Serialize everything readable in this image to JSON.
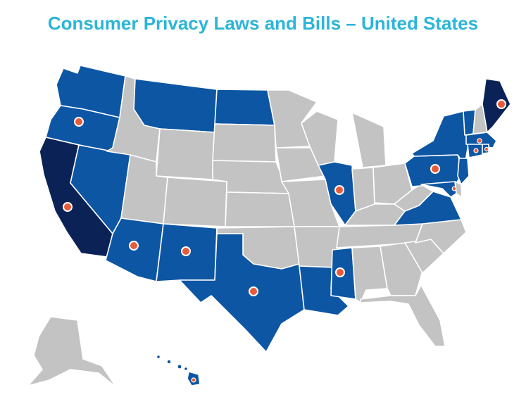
{
  "title": "Consumer Privacy Laws and Bills – United States",
  "colors": {
    "title": "#2bb5d8",
    "enacted": "#0b2257",
    "bill": "#0d56a3",
    "none": "#c3c3c3",
    "marker": "#e85b3a"
  },
  "states": [
    {
      "code": "WA",
      "status": "bill",
      "marker": false
    },
    {
      "code": "OR",
      "status": "bill",
      "marker": true
    },
    {
      "code": "CA",
      "status": "enacted",
      "marker": true
    },
    {
      "code": "NV",
      "status": "bill",
      "marker": false
    },
    {
      "code": "ID",
      "status": "none",
      "marker": false
    },
    {
      "code": "MT",
      "status": "bill",
      "marker": false
    },
    {
      "code": "WY",
      "status": "none",
      "marker": false
    },
    {
      "code": "UT",
      "status": "none",
      "marker": false
    },
    {
      "code": "AZ",
      "status": "bill",
      "marker": true
    },
    {
      "code": "CO",
      "status": "none",
      "marker": false
    },
    {
      "code": "NM",
      "status": "bill",
      "marker": true
    },
    {
      "code": "ND",
      "status": "bill",
      "marker": false
    },
    {
      "code": "SD",
      "status": "none",
      "marker": false
    },
    {
      "code": "NE",
      "status": "none",
      "marker": false
    },
    {
      "code": "KS",
      "status": "none",
      "marker": false
    },
    {
      "code": "OK",
      "status": "none",
      "marker": false
    },
    {
      "code": "TX",
      "status": "bill",
      "marker": true
    },
    {
      "code": "MN",
      "status": "none",
      "marker": false
    },
    {
      "code": "IA",
      "status": "none",
      "marker": false
    },
    {
      "code": "MO",
      "status": "none",
      "marker": false
    },
    {
      "code": "AR",
      "status": "none",
      "marker": false
    },
    {
      "code": "LA",
      "status": "bill",
      "marker": false
    },
    {
      "code": "WI",
      "status": "none",
      "marker": false
    },
    {
      "code": "IL",
      "status": "bill",
      "marker": true
    },
    {
      "code": "MS",
      "status": "bill",
      "marker": true
    },
    {
      "code": "MI",
      "status": "none",
      "marker": false
    },
    {
      "code": "IN",
      "status": "none",
      "marker": false
    },
    {
      "code": "OH",
      "status": "none",
      "marker": false
    },
    {
      "code": "KY",
      "status": "none",
      "marker": false
    },
    {
      "code": "TN",
      "status": "none",
      "marker": false
    },
    {
      "code": "AL",
      "status": "none",
      "marker": false
    },
    {
      "code": "GA",
      "status": "none",
      "marker": false
    },
    {
      "code": "FL",
      "status": "none",
      "marker": false
    },
    {
      "code": "SC",
      "status": "none",
      "marker": false
    },
    {
      "code": "NC",
      "status": "none",
      "marker": false
    },
    {
      "code": "VA",
      "status": "bill",
      "marker": false
    },
    {
      "code": "WV",
      "status": "none",
      "marker": false
    },
    {
      "code": "PA",
      "status": "bill",
      "marker": true
    },
    {
      "code": "NY",
      "status": "bill",
      "marker": false
    },
    {
      "code": "VT",
      "status": "bill",
      "marker": false
    },
    {
      "code": "NH",
      "status": "none",
      "marker": false
    },
    {
      "code": "ME",
      "status": "enacted",
      "marker": true
    },
    {
      "code": "MA",
      "status": "bill",
      "marker": true
    },
    {
      "code": "RI",
      "status": "bill",
      "marker": true
    },
    {
      "code": "CT",
      "status": "bill",
      "marker": true
    },
    {
      "code": "NJ",
      "status": "bill",
      "marker": false
    },
    {
      "code": "DE",
      "status": "none",
      "marker": false
    },
    {
      "code": "MD",
      "status": "bill",
      "marker": true
    },
    {
      "code": "AK",
      "status": "none",
      "marker": false
    },
    {
      "code": "HI",
      "status": "bill",
      "marker": true
    }
  ]
}
